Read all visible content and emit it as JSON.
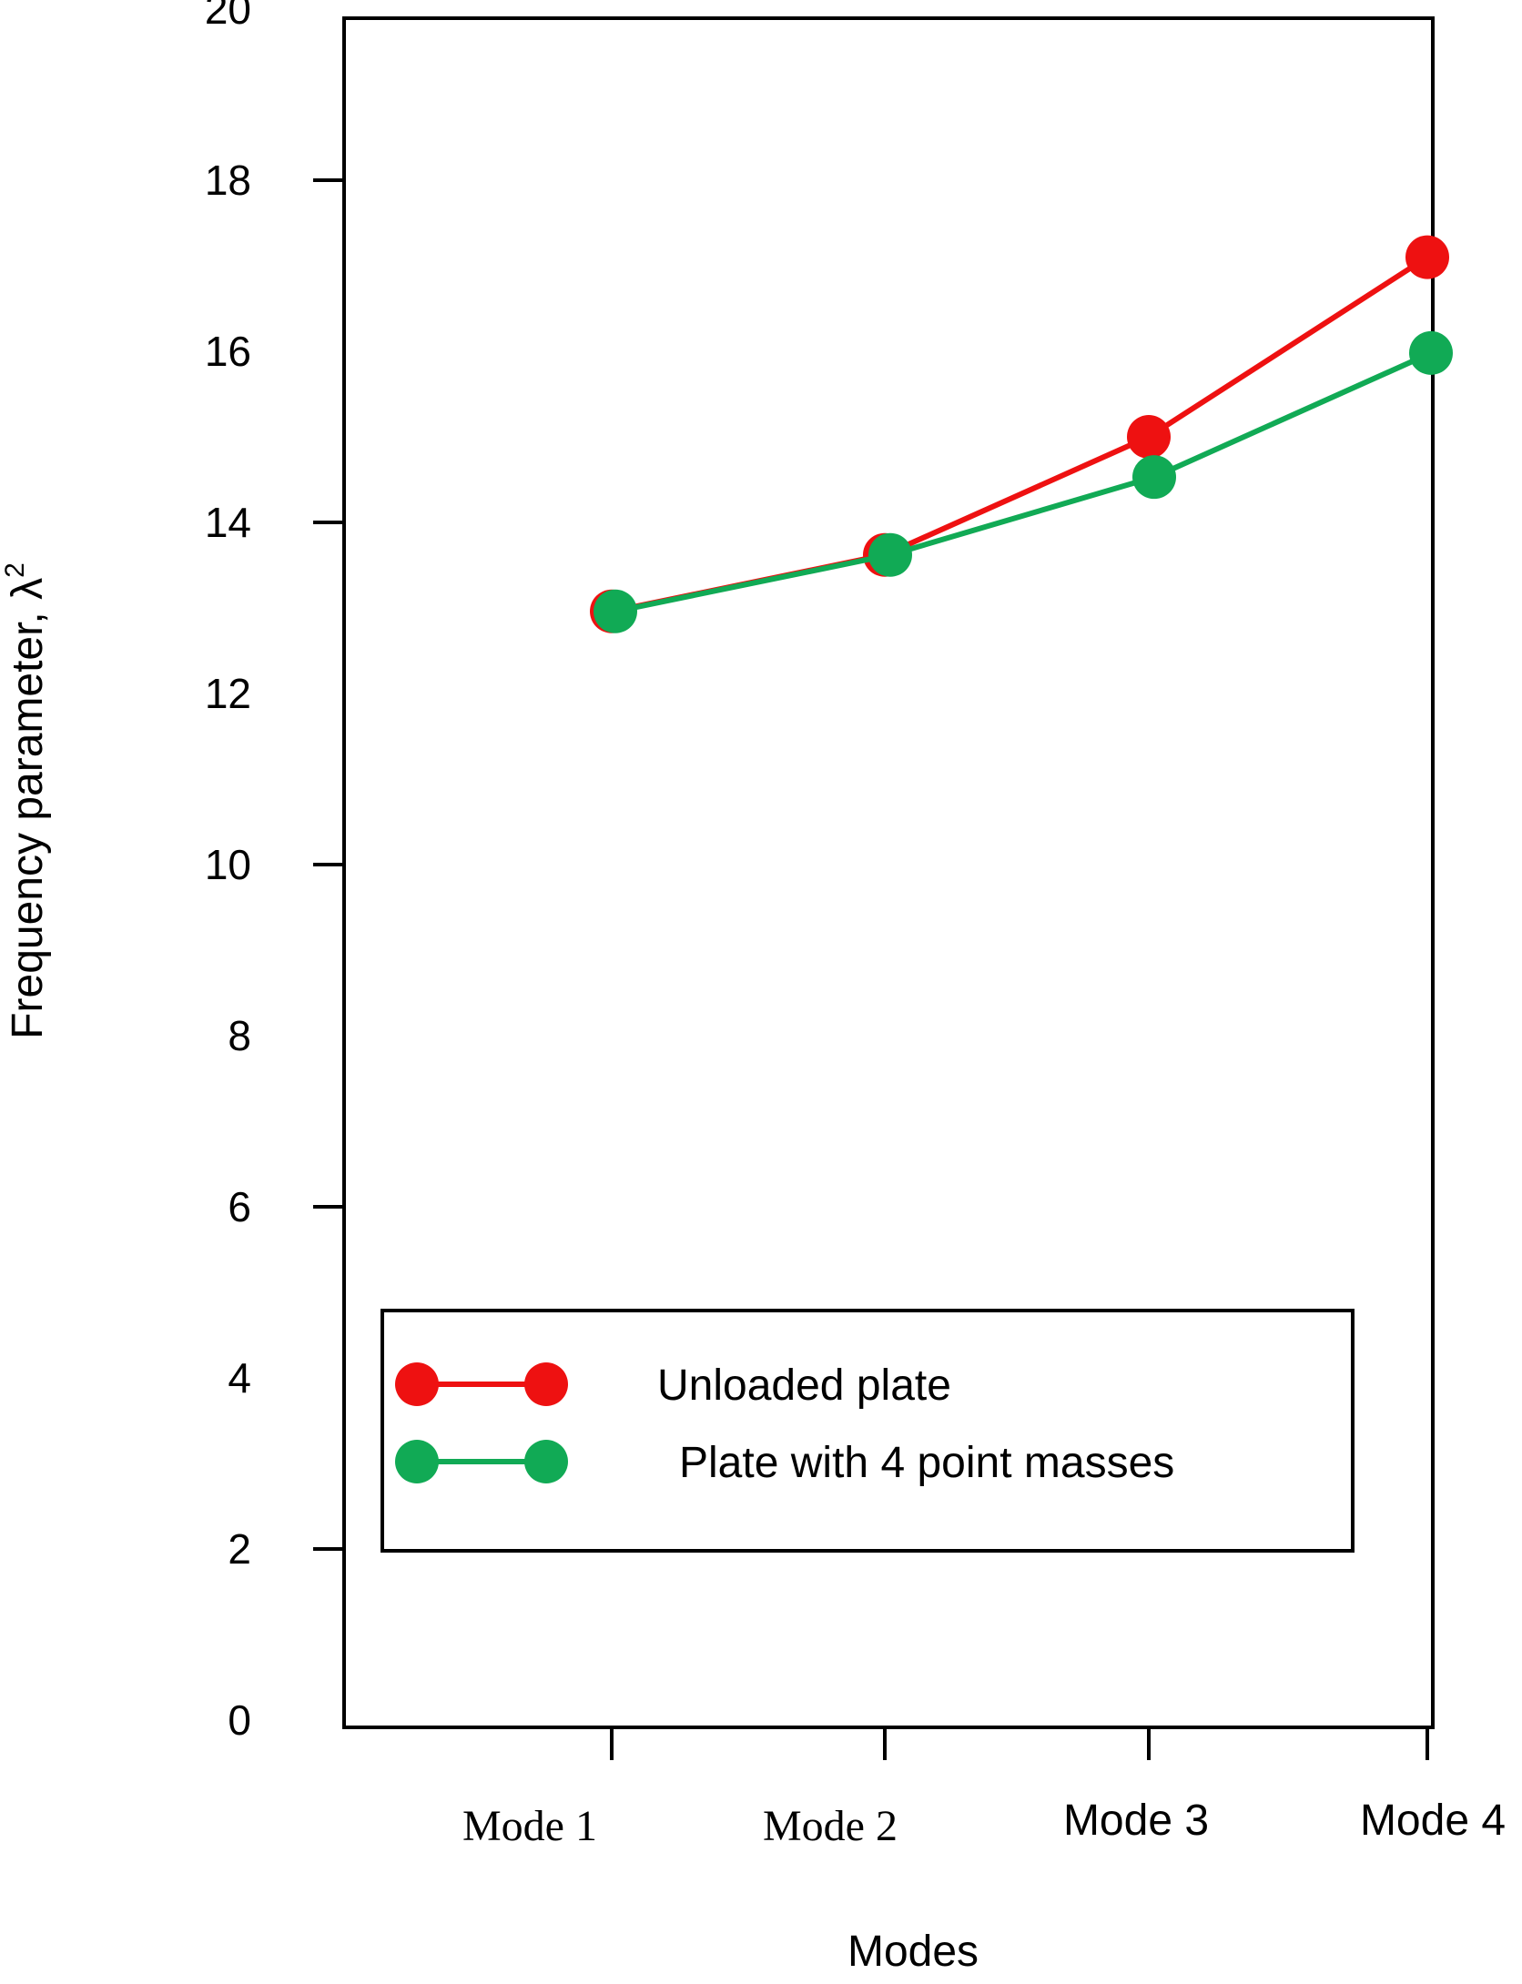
{
  "chart_data": {
    "type": "line",
    "title": "",
    "xlabel": "Modes",
    "ylabel": "Frequency parameter, λ",
    "ylabel_superscript": "2",
    "categories": [
      "Mode 1",
      "Mode 2",
      "Mode 3",
      "Mode 4"
    ],
    "ylim": [
      0,
      20
    ],
    "yticks": [
      0,
      2,
      4,
      6,
      8,
      10,
      12,
      14,
      16,
      18,
      20
    ],
    "grid": false,
    "legend_position": "bottom-left",
    "series": [
      {
        "name": "Unloaded plate",
        "color": "#ee1111",
        "values": [
          12.96,
          13.62,
          15.0,
          17.1
        ]
      },
      {
        "name": "Plate with 4 point masses",
        "color": "#11aa55",
        "values": [
          12.96,
          13.62,
          14.53,
          15.98
        ]
      }
    ]
  }
}
